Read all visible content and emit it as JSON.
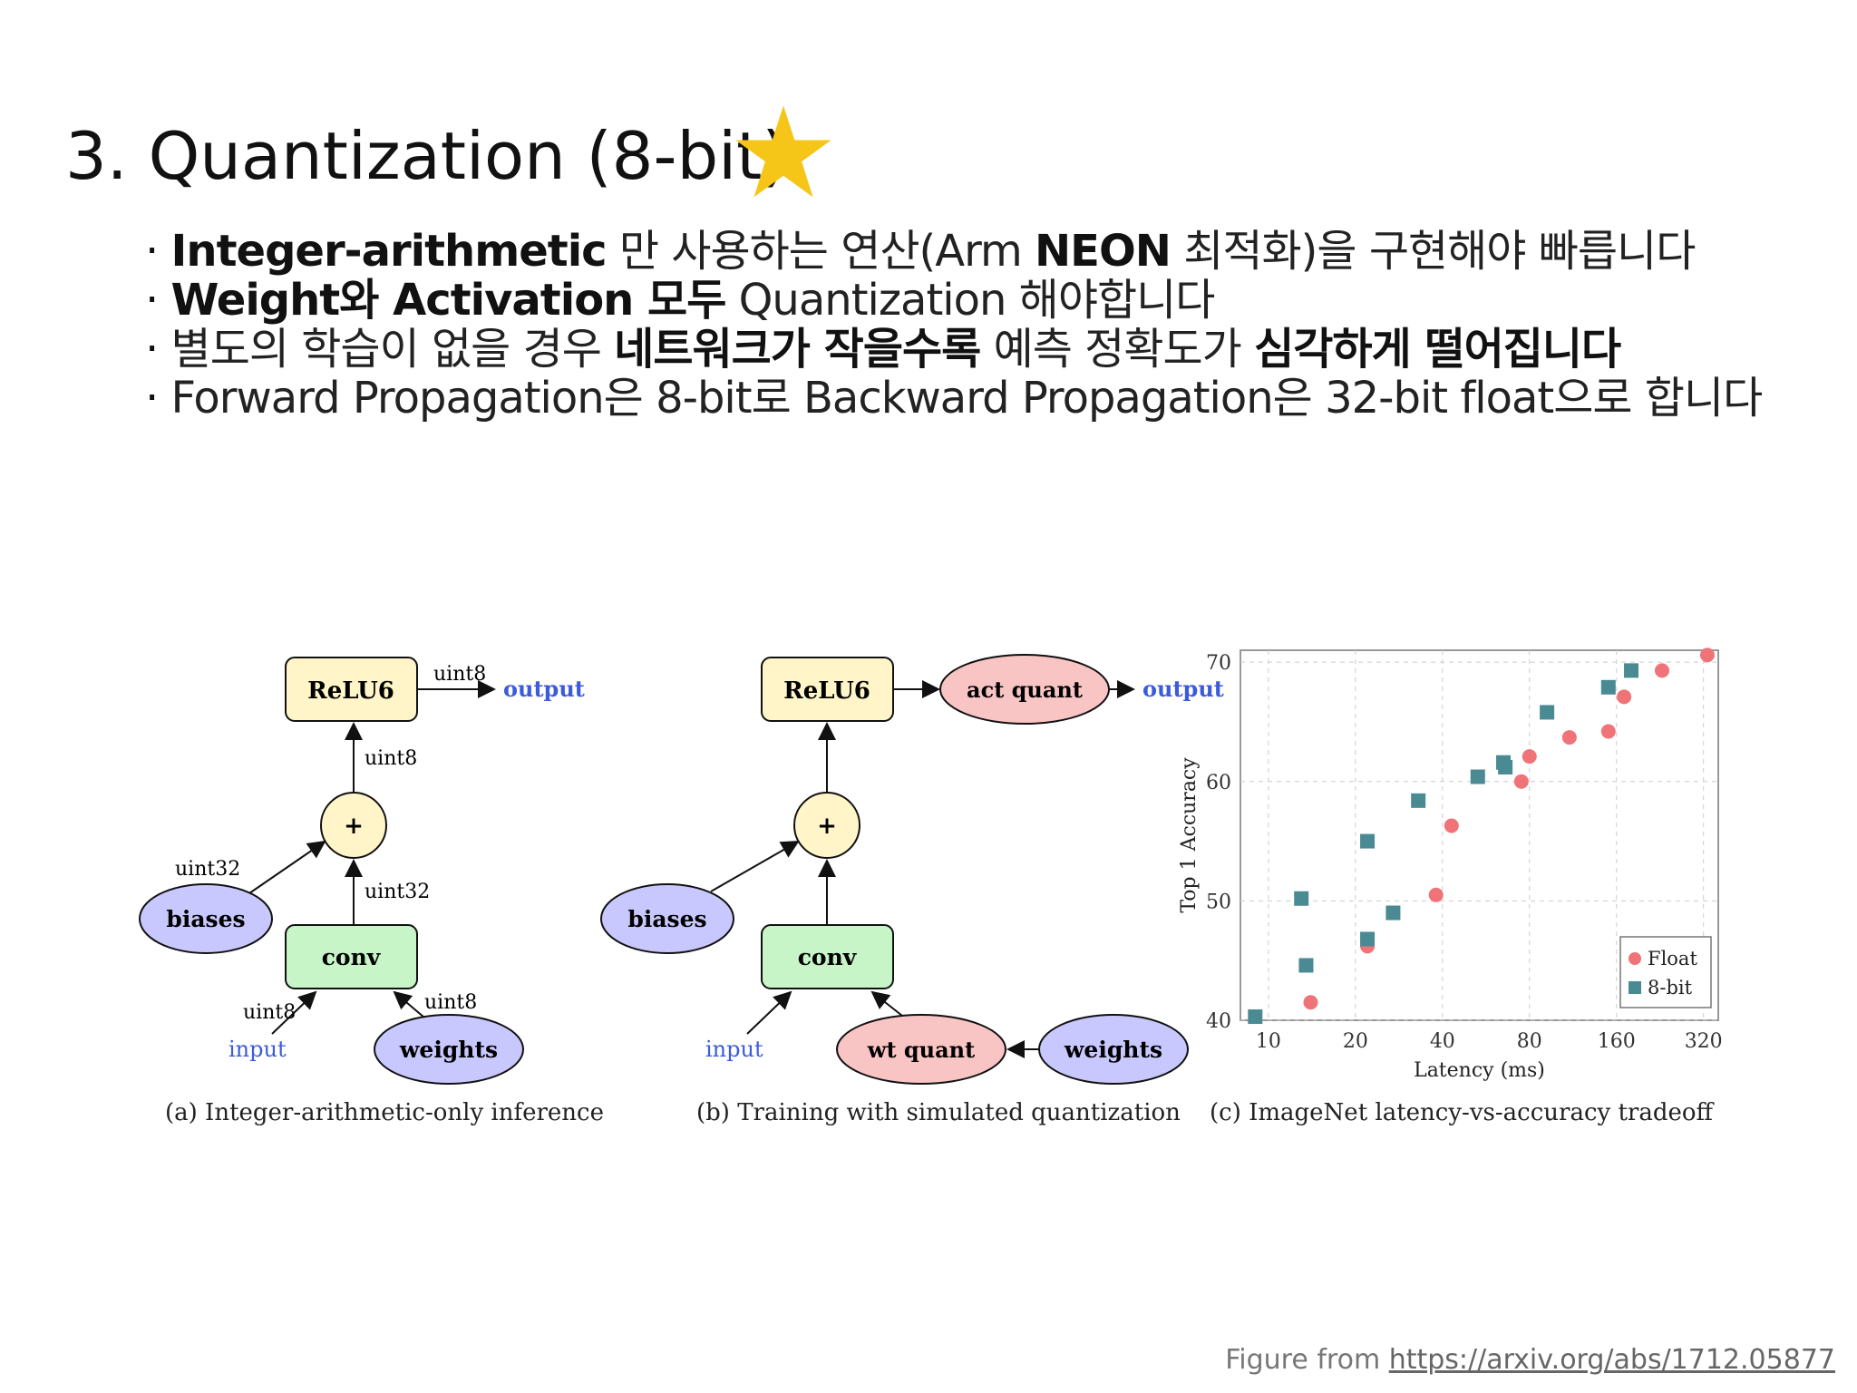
{
  "slide": {
    "title": "3. Quantization (8-bit)",
    "star_color": "#F5C518",
    "bullets": [
      {
        "dot": "·",
        "parts": [
          {
            "text": "Integer-arithmetic",
            "bold": true
          },
          {
            "text": " 만 사용하는 연산(Arm ",
            "bold": false
          },
          {
            "text": "NEON",
            "bold": true
          },
          {
            "text": " 최적화)을 구현해야 빠릅니다",
            "bold": false
          }
        ]
      },
      {
        "dot": "·",
        "parts": [
          {
            "text": "Weight와 Activation 모두",
            "bold": true
          },
          {
            "text": " Quantization 해야합니다",
            "bold": false
          }
        ]
      },
      {
        "dot": "·",
        "parts": [
          {
            "text": "별도의 학습이 없을 경우 ",
            "bold": false
          },
          {
            "text": "네트워크가 작을수록",
            "bold": true
          },
          {
            "text": " 예측 정확도가 ",
            "bold": false
          },
          {
            "text": "심각하게 떨어집니다",
            "bold": true
          }
        ]
      },
      {
        "dot": "·",
        "parts": [
          {
            "text": "Forward Propagation은 8-bit로 Backward Propagation은 32-bit float으로 합니다",
            "bold": false
          }
        ]
      }
    ],
    "credit_prefix": "Figure from ",
    "credit_link": "https://arxiv.org/abs/1712.05877"
  },
  "figure_a": {
    "caption": "(a) Integer-arithmetic-only inference",
    "nodes": {
      "relu": "ReLU6",
      "plus": "+",
      "biases": "biases",
      "conv": "conv",
      "input": "input",
      "weights": "weights",
      "output": "output"
    },
    "edge_labels": {
      "relu_out": "uint8",
      "plus_relu": "uint8",
      "biases_plus": "uint32",
      "conv_plus": "uint32",
      "input_conv": "uint8",
      "weights_conv": "uint8"
    }
  },
  "figure_b": {
    "caption": "(b) Training with simulated quantization",
    "nodes": {
      "relu": "ReLU6",
      "act_quant": "act quant",
      "output": "output",
      "plus": "+",
      "biases": "biases",
      "conv": "conv",
      "input": "input",
      "wt_quant": "wt quant",
      "weights": "weights"
    }
  },
  "colors": {
    "yellow_node": "#FFF5C8",
    "purple_node": "#C8C8FF",
    "green_node": "#C8F5C8",
    "pink_node": "#F8C4C4",
    "blue_text": "#3B5BDB",
    "float_series": "#F07378",
    "int8_series": "#4A8A93"
  },
  "chart_data": {
    "type": "scatter",
    "caption": "(c) ImageNet latency-vs-accuracy tradeoff",
    "xlabel": "Latency (ms)",
    "ylabel": "Top 1 Accuracy",
    "x_scale": "log",
    "x_ticks": [
      10,
      20,
      40,
      80,
      160,
      320
    ],
    "y_ticks": [
      40,
      50,
      60,
      70
    ],
    "xlim": [
      8,
      360
    ],
    "ylim": [
      40,
      71
    ],
    "grid": true,
    "legend_position": "bottom-right",
    "series": [
      {
        "name": "Float",
        "marker": "circle",
        "color": "#F07378",
        "points": [
          [
            14,
            41.5
          ],
          [
            22,
            46.2
          ],
          [
            27,
            49.0
          ],
          [
            38,
            50.5
          ],
          [
            43,
            56.3
          ],
          [
            75,
            60.0
          ],
          [
            80,
            62.1
          ],
          [
            110,
            63.7
          ],
          [
            150,
            64.2
          ],
          [
            170,
            67.1
          ],
          [
            230,
            69.3
          ],
          [
            330,
            70.6
          ]
        ]
      },
      {
        "name": "8-bit",
        "marker": "square",
        "color": "#4A8A93",
        "points": [
          [
            9,
            40.3
          ],
          [
            13,
            50.2
          ],
          [
            13.5,
            44.6
          ],
          [
            22,
            46.8
          ],
          [
            22,
            55.0
          ],
          [
            27,
            49.0
          ],
          [
            33,
            58.4
          ],
          [
            53,
            60.4
          ],
          [
            65,
            61.6
          ],
          [
            66,
            61.2
          ],
          [
            92,
            65.8
          ],
          [
            150,
            67.9
          ],
          [
            180,
            69.3
          ]
        ]
      }
    ]
  }
}
